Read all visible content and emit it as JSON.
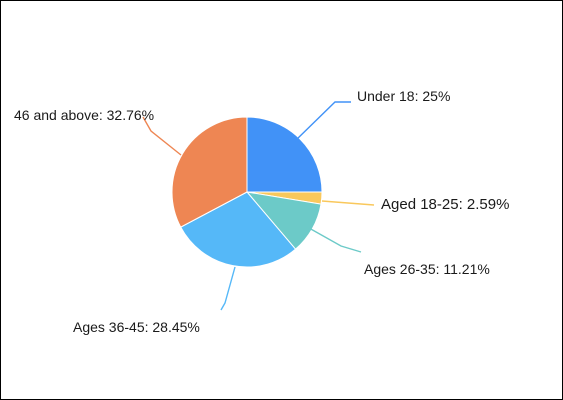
{
  "chart_data": {
    "type": "pie",
    "title": "",
    "slices": [
      {
        "label": "Under 18: 25%",
        "name": "Under 18",
        "value": 25.0,
        "color": "#4192f7"
      },
      {
        "label": "Aged 18-25: 2.59%",
        "name": "Aged 18-25",
        "value": 2.59,
        "color": "#f9c85c"
      },
      {
        "label": "Ages 26-35: 11.21%",
        "name": "Ages 26-35",
        "value": 11.21,
        "color": "#6ccac8"
      },
      {
        "label": "Ages 36-45: 28.45%",
        "name": "Ages 36-45",
        "value": 28.45,
        "color": "#55b8f8"
      },
      {
        "label": "46 and above: 32.76%",
        "name": "46 and above",
        "value": 32.76,
        "color": "#ee8653"
      }
    ]
  }
}
